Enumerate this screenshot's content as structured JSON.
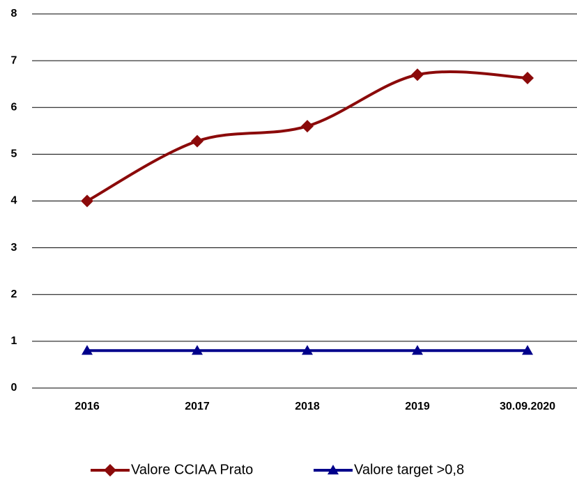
{
  "chart_data": {
    "type": "line",
    "categories": [
      "2016",
      "2017",
      "2018",
      "2019",
      "30.09.2020"
    ],
    "series": [
      {
        "name": "Valore CCIAA Prato",
        "color": "#8b0a0a",
        "marker": "diamond",
        "values": [
          4.0,
          5.28,
          5.6,
          6.7,
          6.63
        ]
      },
      {
        "name": "Valore target >0,8",
        "color": "#00008b",
        "marker": "triangle",
        "values": [
          0.8,
          0.8,
          0.8,
          0.8,
          0.8
        ]
      }
    ],
    "ylim": [
      0,
      8
    ],
    "yticks": [
      0,
      1,
      2,
      3,
      4,
      5,
      6,
      7,
      8
    ],
    "grid": true,
    "smooth": true,
    "legend": "bottom"
  }
}
